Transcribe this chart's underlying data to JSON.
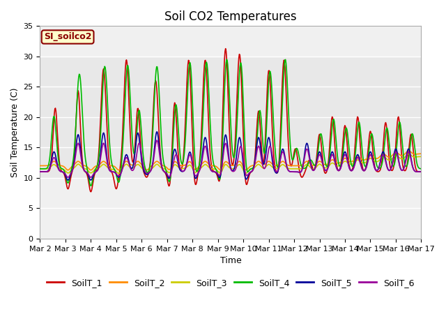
{
  "title": "Soil CO2 Temperatures",
  "xlabel": "Time",
  "ylabel": "Soil Temperature (C)",
  "ylim": [
    0,
    35
  ],
  "annotation_text": "SI_soilco2",
  "annotation_color": "#8B0000",
  "annotation_bg": "#FFFFCC",
  "annotation_edge": "#8B0000",
  "grid_color": "#DDDDDD",
  "bg_outer": "#F0F0F0",
  "bg_inner": "#E0E0E0",
  "xtick_labels": [
    "Mar 2",
    "Mar 3",
    "Mar 4",
    "Mar 5",
    "Mar 6",
    "Mar 7",
    "Mar 8",
    "Mar 9",
    "Mar 10",
    "Mar 11",
    "Mar 12",
    "Mar 13",
    "Mar 14",
    "Mar 15",
    "Mar 16",
    "Mar 17"
  ],
  "series_colors": [
    "#CC0000",
    "#FF8C00",
    "#CCCC00",
    "#00BB00",
    "#000099",
    "#990099"
  ],
  "series_names": [
    "SoilT_1",
    "SoilT_2",
    "SoilT_3",
    "SoilT_4",
    "SoilT_5",
    "SoilT_6"
  ],
  "title_fontsize": 12,
  "axis_label_fontsize": 9,
  "tick_fontsize": 8,
  "legend_fontsize": 9,
  "line_width": 1.2,
  "ytick_values": [
    0,
    5,
    10,
    15,
    20,
    25,
    30,
    35
  ]
}
